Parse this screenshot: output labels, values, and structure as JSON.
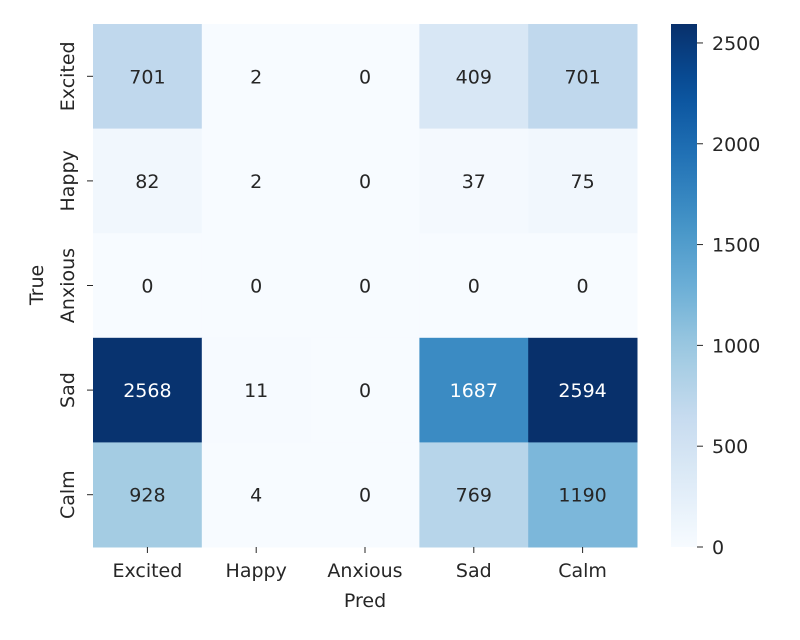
{
  "chart_data": {
    "type": "heatmap",
    "title": "",
    "xlabel": "Pred",
    "ylabel": "True",
    "x_categories": [
      "Excited",
      "Happy",
      "Anxious",
      "Sad",
      "Calm"
    ],
    "y_categories": [
      "Excited",
      "Happy",
      "Anxious",
      "Sad",
      "Calm"
    ],
    "values": [
      [
        701,
        2,
        0,
        409,
        701
      ],
      [
        82,
        2,
        0,
        37,
        75
      ],
      [
        0,
        0,
        0,
        0,
        0
      ],
      [
        2568,
        11,
        0,
        1687,
        2594
      ],
      [
        928,
        4,
        0,
        769,
        1190
      ]
    ],
    "colorbar": {
      "colormap": "Blues",
      "range": [
        0,
        2594
      ],
      "ticks": [
        0,
        500,
        1000,
        1500,
        2000,
        2500
      ]
    },
    "grid": false,
    "legend": "colorbar-right"
  }
}
